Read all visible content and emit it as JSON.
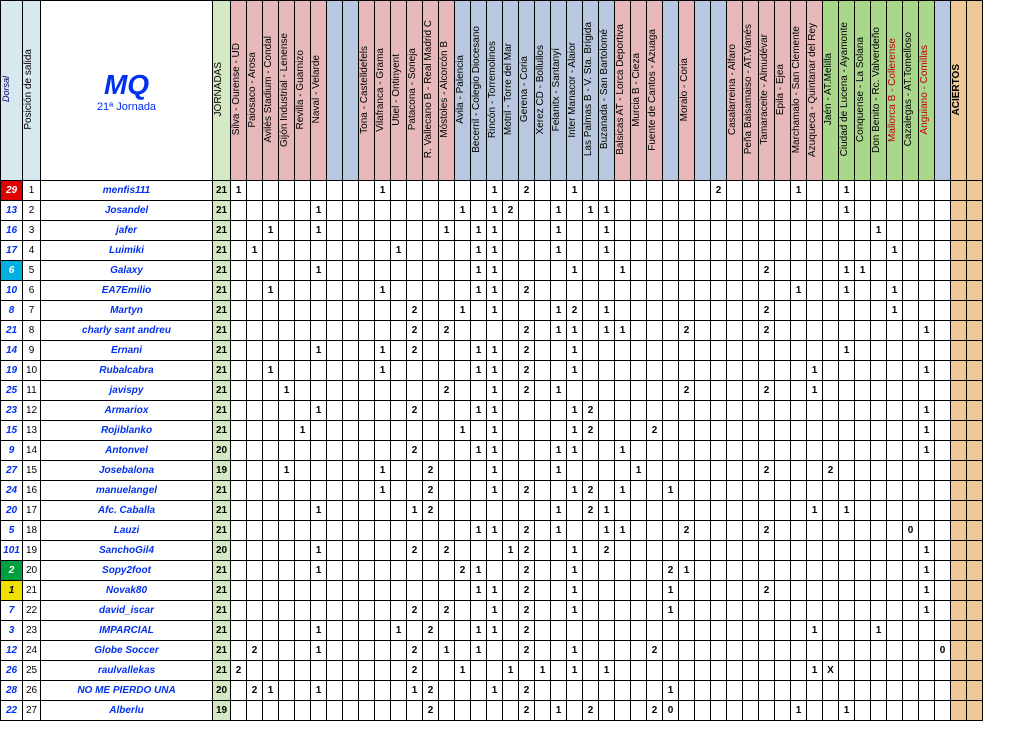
{
  "title": "MQ",
  "subtitle": "21ª Jornada",
  "headers": {
    "dorsal": "Dorsal",
    "pos": "Posición de salida",
    "jornadas": "JORNADAS",
    "aciertos": "ACIERTOS"
  },
  "matches": [
    {
      "t": "Silva - Ourense - UD",
      "c": "pink"
    },
    {
      "t": "Paiosaco - Arosa",
      "c": "pink"
    },
    {
      "t": "Avilés Stadium - Condal",
      "c": "pink"
    },
    {
      "t": "Gijón Industrial - Lenense",
      "c": "pink"
    },
    {
      "t": "Revilla - Guarnizo",
      "c": "pink"
    },
    {
      "t": "Naval - Velarde",
      "c": "pink"
    },
    {
      "t": "",
      "c": "blue"
    },
    {
      "t": "",
      "c": "blue"
    },
    {
      "t": "Tona - Castelldefels",
      "c": "pink"
    },
    {
      "t": "Vilafranca - Grama",
      "c": "pink"
    },
    {
      "t": "Utiel - Ontinyent",
      "c": "pink"
    },
    {
      "t": "Patacona - Soneja",
      "c": "pink"
    },
    {
      "t": "R. Vallecano B - Real Madrid C",
      "c": "pink"
    },
    {
      "t": "Móstoles - Alcorcón B",
      "c": "pink"
    },
    {
      "t": "Avila - Palencia",
      "c": "blue"
    },
    {
      "t": "Becerril - Colegio Diocesano",
      "c": "blue"
    },
    {
      "t": "Rincón - Torremolinos",
      "c": "blue"
    },
    {
      "t": "Motril - Torre del Mar",
      "c": "blue"
    },
    {
      "t": "Gerena - Coria",
      "c": "blue"
    },
    {
      "t": "Xerez CD - Bollullos",
      "c": "blue"
    },
    {
      "t": "Felanitx - Santanyí",
      "c": "blue"
    },
    {
      "t": "Inter Manacor - Alaior",
      "c": "blue"
    },
    {
      "t": "Las Palmas B - V. Sta. Brígida",
      "c": "blue"
    },
    {
      "t": "Buzanada - San Bartolomé",
      "c": "blue"
    },
    {
      "t": "Balsicas AT - Lorca Deportiva",
      "c": "pink"
    },
    {
      "t": "Murcia B - Cieza",
      "c": "pink"
    },
    {
      "t": "Fuente de Cantos - Azuaga",
      "c": "pink"
    },
    {
      "t": "",
      "c": "blue"
    },
    {
      "t": "Moralo - Coria",
      "c": "pink"
    },
    {
      "t": "",
      "c": "blue"
    },
    {
      "t": "",
      "c": "blue"
    },
    {
      "t": "Casalarreina - Alfaro",
      "c": "pink"
    },
    {
      "t": "Peña Balsamaiso - AT.Vianés",
      "c": "pink"
    },
    {
      "t": "Tamaraceite - Almudévar",
      "c": "pink"
    },
    {
      "t": "Epila - Ejea",
      "c": "pink"
    },
    {
      "t": "Marchamalo - San Clemente",
      "c": "pink"
    },
    {
      "t": "Azuqueca - Quintanar del Rey",
      "c": "pink"
    },
    {
      "t": "Jaén - AT.Melilla",
      "c": "green"
    },
    {
      "t": "Ciudad de Lucena - Ayamonte",
      "c": "green"
    },
    {
      "t": "Conquense - La Solana",
      "c": "green"
    },
    {
      "t": "Don Benito - Rc. Valverdeño",
      "c": "green"
    },
    {
      "t": "Mallorca B - Collerense",
      "c": "green",
      "r": 1
    },
    {
      "t": "Cazalegas - AT.Tomelloso",
      "c": "green"
    },
    {
      "t": "Anguiano - Comillas",
      "c": "green",
      "r": 1
    },
    {
      "t": "",
      "c": "blue"
    }
  ],
  "rows": [
    {
      "d": "29",
      "dc": "d-red",
      "p": "1",
      "n": "menfis111",
      "j": "21",
      "v": {
        "0": "1",
        "9": "1",
        "16": "1",
        "18": "2",
        "21": "1",
        "30": "2",
        "35": "1",
        "38": "1"
      }
    },
    {
      "d": "13",
      "p": "2",
      "n": "Josandel",
      "j": "21",
      "v": {
        "5": "1",
        "14": "1",
        "16": "1",
        "17": "2",
        "20": "1",
        "22": "1",
        "23": "1",
        "38": "1"
      }
    },
    {
      "d": "16",
      "p": "3",
      "n": "jafer",
      "j": "21",
      "v": {
        "2": "1",
        "5": "1",
        "13": "1",
        "15": "1",
        "16": "1",
        "20": "1",
        "23": "1",
        "40": "1"
      }
    },
    {
      "d": "17",
      "p": "4",
      "n": "Luimiki",
      "j": "21",
      "v": {
        "1": "1",
        "10": "1",
        "15": "1",
        "16": "1",
        "20": "1",
        "23": "1",
        "41": "1"
      }
    },
    {
      "d": "6",
      "dc": "d-cyan",
      "p": "5",
      "n": "Galaxy",
      "j": "21",
      "v": {
        "5": "1",
        "15": "1",
        "16": "1",
        "21": "1",
        "24": "1",
        "33": "2",
        "38": "1",
        "39": "1"
      }
    },
    {
      "d": "10",
      "p": "6",
      "n": "EA7Emilio",
      "j": "21",
      "v": {
        "2": "1",
        "9": "1",
        "15": "1",
        "16": "1",
        "18": "2",
        "35": "1",
        "38": "1",
        "41": "1"
      }
    },
    {
      "d": "8",
      "p": "7",
      "n": "Martyn",
      "j": "21",
      "v": {
        "11": "2",
        "14": "1",
        "16": "1",
        "20": "1",
        "21": "2",
        "23": "1",
        "33": "2",
        "41": "1"
      }
    },
    {
      "d": "21",
      "p": "8",
      "n": "charly sant andreu",
      "j": "21",
      "v": {
        "11": "2",
        "13": "2",
        "18": "2",
        "20": "1",
        "21": "1",
        "23": "1",
        "24": "1",
        "28": "2",
        "33": "2",
        "43": "1"
      }
    },
    {
      "d": "14",
      "p": "9",
      "n": "Ernani",
      "j": "21",
      "v": {
        "5": "1",
        "9": "1",
        "11": "2",
        "15": "1",
        "16": "1",
        "18": "2",
        "21": "1",
        "38": "1"
      }
    },
    {
      "d": "19",
      "p": "10",
      "n": "Rubalcabra",
      "j": "21",
      "v": {
        "2": "1",
        "9": "1",
        "15": "1",
        "16": "1",
        "18": "2",
        "21": "1",
        "36": "1",
        "43": "1"
      }
    },
    {
      "d": "25",
      "p": "11",
      "n": "javispy",
      "j": "21",
      "v": {
        "3": "1",
        "13": "2",
        "16": "1",
        "18": "2",
        "20": "1",
        "28": "2",
        "33": "2",
        "36": "1"
      }
    },
    {
      "d": "23",
      "p": "12",
      "n": "Armariox",
      "j": "21",
      "v": {
        "5": "1",
        "11": "2",
        "15": "1",
        "16": "1",
        "21": "1",
        "22": "2",
        "43": "1"
      }
    },
    {
      "d": "15",
      "p": "13",
      "n": "Rojiblanko",
      "j": "21",
      "v": {
        "4": "1",
        "14": "1",
        "16": "1",
        "21": "1",
        "22": "2",
        "26": "2",
        "43": "1"
      }
    },
    {
      "d": "9",
      "p": "14",
      "n": "Antonvel",
      "j": "20",
      "v": {
        "11": "2",
        "15": "1",
        "16": "1",
        "20": "1",
        "21": "1",
        "24": "1",
        "43": "1"
      }
    },
    {
      "d": "27",
      "p": "15",
      "n": "Josebalona",
      "j": "19",
      "v": {
        "3": "1",
        "9": "1",
        "12": "2",
        "16": "1",
        "20": "1",
        "25": "1",
        "33": "2",
        "37": "2"
      }
    },
    {
      "d": "24",
      "p": "16",
      "n": "manuelangel",
      "j": "21",
      "v": {
        "9": "1",
        "12": "2",
        "16": "1",
        "18": "2",
        "21": "1",
        "22": "2",
        "24": "1",
        "27": "1"
      }
    },
    {
      "d": "20",
      "p": "17",
      "n": "Afc. Caballa",
      "j": "21",
      "v": {
        "5": "1",
        "11": "1",
        "12": "2",
        "20": "1",
        "22": "2",
        "23": "1",
        "36": "1",
        "38": "1"
      }
    },
    {
      "d": "5",
      "p": "18",
      "n": "Lauzi",
      "j": "21",
      "v": {
        "15": "1",
        "16": "1",
        "18": "2",
        "20": "1",
        "23": "1",
        "24": "1",
        "28": "2",
        "33": "2",
        "42": "0"
      }
    },
    {
      "d": "101",
      "p": "19",
      "n": "SanchoGil4",
      "j": "20",
      "v": {
        "5": "1",
        "11": "2",
        "13": "2",
        "17": "1",
        "18": "2",
        "21": "1",
        "23": "2",
        "43": "1"
      }
    },
    {
      "d": "2",
      "dc": "d-green",
      "p": "20",
      "n": "Sopy2foot",
      "j": "21",
      "v": {
        "5": "1",
        "14": "2",
        "15": "1",
        "18": "2",
        "21": "1",
        "27": "2",
        "28": "1",
        "43": "1"
      }
    },
    {
      "d": "1",
      "dc": "d-yellow",
      "p": "21",
      "n": "Novak80",
      "j": "21",
      "v": {
        "15": "1",
        "16": "1",
        "18": "2",
        "21": "1",
        "27": "1",
        "33": "2",
        "43": "1"
      }
    },
    {
      "d": "7",
      "p": "22",
      "n": "david_iscar",
      "j": "21",
      "v": {
        "11": "2",
        "13": "2",
        "16": "1",
        "18": "2",
        "21": "1",
        "27": "1",
        "43": "1"
      }
    },
    {
      "d": "3",
      "p": "23",
      "n": "IMPARCIAL",
      "j": "21",
      "v": {
        "5": "1",
        "10": "1",
        "12": "2",
        "15": "1",
        "16": "1",
        "18": "2",
        "36": "1",
        "40": "1"
      }
    },
    {
      "d": "12",
      "p": "24",
      "n": "Globe Soccer",
      "j": "21",
      "v": {
        "1": "2",
        "5": "1",
        "11": "2",
        "13": "1",
        "15": "1",
        "18": "2",
        "21": "1",
        "26": "2",
        "44": "0"
      }
    },
    {
      "d": "26",
      "p": "25",
      "n": "raulvallekas",
      "j": "21",
      "v": {
        "0": "2",
        "11": "2",
        "14": "1",
        "17": "1",
        "19": "1",
        "21": "1",
        "23": "1",
        "36": "1",
        "37": "X"
      }
    },
    {
      "d": "28",
      "p": "26",
      "n": "NO ME PIERDO UNA",
      "j": "20",
      "v": {
        "1": "2",
        "2": "1",
        "5": "1",
        "11": "1",
        "12": "2",
        "16": "1",
        "18": "2",
        "27": "1"
      }
    },
    {
      "d": "22",
      "p": "27",
      "n": "Alberlu",
      "j": "19",
      "v": {
        "12": "2",
        "18": "2",
        "20": "1",
        "22": "2",
        "26": "2",
        "27": "0",
        "35": "1",
        "38": "1"
      }
    }
  ]
}
